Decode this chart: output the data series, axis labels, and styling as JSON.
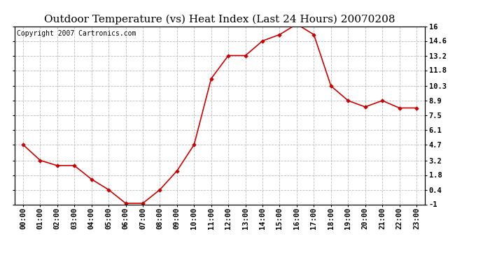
{
  "title": "Outdoor Temperature (vs) Heat Index (Last 24 Hours) 20070208",
  "copyright_text": "Copyright 2007 Cartronics.com",
  "x_labels": [
    "00:00",
    "01:00",
    "02:00",
    "03:00",
    "04:00",
    "05:00",
    "06:00",
    "07:00",
    "08:00",
    "09:00",
    "10:00",
    "11:00",
    "12:00",
    "13:00",
    "14:00",
    "15:00",
    "16:00",
    "17:00",
    "18:00",
    "19:00",
    "20:00",
    "21:00",
    "22:00",
    "23:00"
  ],
  "y_values": [
    4.7,
    3.2,
    2.7,
    2.7,
    1.4,
    0.4,
    -0.9,
    -0.9,
    0.4,
    2.2,
    4.7,
    11.0,
    13.2,
    13.2,
    14.6,
    15.2,
    16.2,
    15.2,
    10.3,
    8.9,
    8.3,
    8.9,
    8.2,
    8.2
  ],
  "line_color": "#cc0000",
  "marker_color": "#cc0000",
  "background_color": "#ffffff",
  "grid_color": "#bbbbbb",
  "ylim": [
    -1.0,
    16.0
  ],
  "yticks": [
    -1.0,
    0.4,
    1.8,
    3.2,
    4.7,
    6.1,
    7.5,
    8.9,
    10.3,
    11.8,
    13.2,
    14.6,
    16.0
  ],
  "title_fontsize": 11,
  "copyright_fontsize": 7,
  "axis_label_fontsize": 7.5
}
